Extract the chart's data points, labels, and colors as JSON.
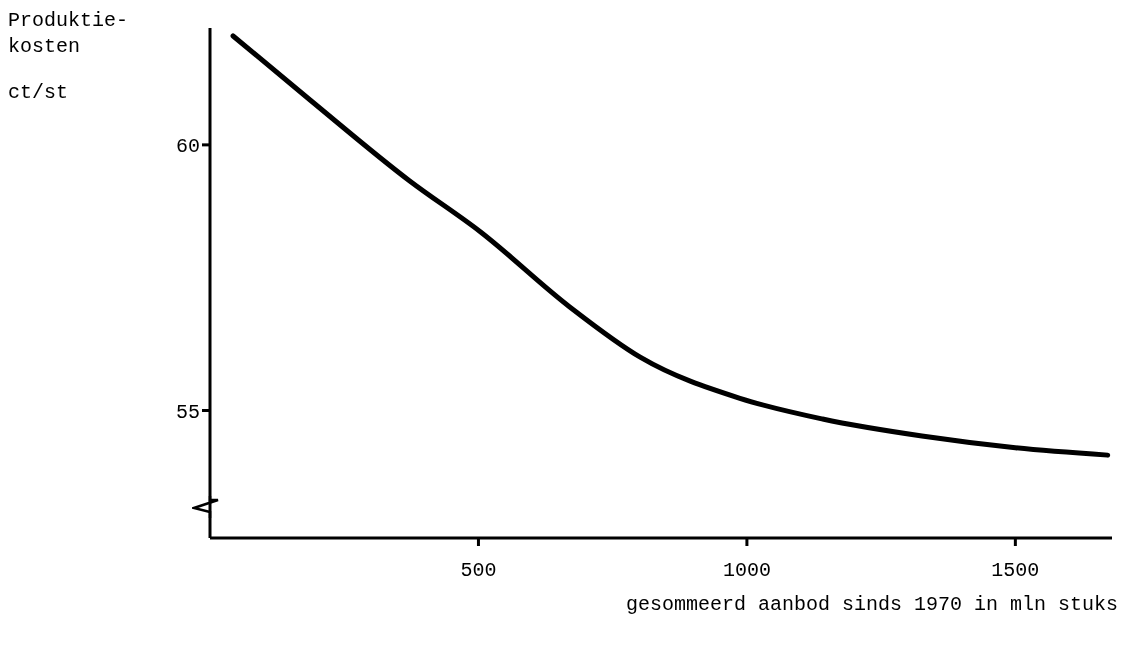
{
  "chart_data": {
    "type": "line",
    "ylabel": "Produktie- kosten ct/st",
    "xlabel": "gesommeerd aanbod sinds 1970 in mln stuks",
    "x": [
      43,
      187,
      372,
      504,
      670,
      802,
      987,
      1141,
      1326,
      1500,
      1672
    ],
    "series": [
      {
        "color": "#000000",
        "values": [
          62.05,
          60.84,
          59.32,
          58.36,
          56.95,
          56.0,
          55.23,
          54.84,
          54.52,
          54.3,
          54.16
        ]
      }
    ],
    "xlim": [
      0,
      1680
    ],
    "xticks": [
      500,
      1000,
      1500
    ],
    "ylim": [
      52.6,
      62.2
    ],
    "yticks": [
      55,
      60
    ],
    "grid": false,
    "marker": "none",
    "line_style": "solid"
  }
}
